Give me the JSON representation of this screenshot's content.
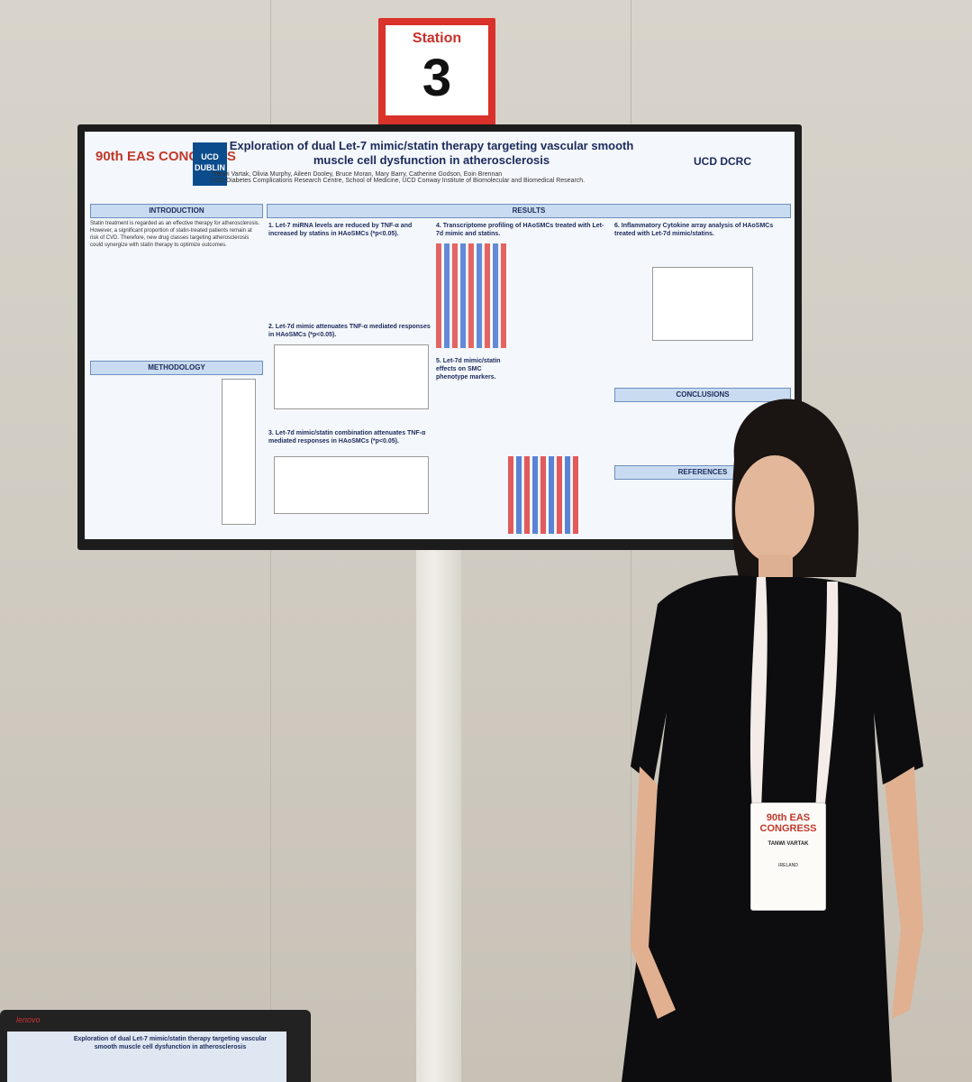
{
  "station": {
    "label": "Station",
    "number": "3"
  },
  "poster": {
    "title": "Exploration of dual Let-7 mimic/statin therapy targeting vascular smooth muscle cell dysfunction in atherosclerosis",
    "authors": "*Tanwi Vartak, Olivia Murphy, Aileen Dooley, Bruce Moran, Mary Barry, Catherine Godson, Eoin Brennan",
    "affiliation": "UCD Diabetes Complications Research Centre, School of Medicine, UCD Conway Institute of Biomolecular and Biomedical Research.",
    "logo_left": "90th EAS CONGRESS",
    "logo_ucd": "UCD DUBLIN",
    "logo_right": "UCD DCRC",
    "sections": {
      "intro": "INTRODUCTION",
      "methods": "METHODOLOGY",
      "results": "RESULTS",
      "conclusions": "CONCLUSIONS",
      "references": "REFERENCES"
    },
    "intro_text": "Statin treatment is regarded as an effective therapy for atherosclerosis. However, a significant proportion of statin-treated patients remain at risk of CVD. Therefore, new drug classes targeting atherosclerosis could synergize with statin therapy to optimize outcomes.",
    "result1": "1. Let-7 miRNA levels are reduced by TNF-α and increased by statins in HAoSMCs (*p<0.05).",
    "result2": "2. Let-7d mimic attenuates TNF-α mediated responses in HAoSMCs (*p<0.05).",
    "result3": "3. Let-7d mimic/statin combination attenuates TNF-α mediated responses in HAoSMCs (*p<0.05).",
    "result4": "4. Transcriptome profiling of HAoSMCs treated with Let-7d mimic and statins.",
    "result5": "5. Let-7d mimic/statin effects on SMC phenotype markers.",
    "result6": "6. Inflammatory Cytokine array analysis of HAoSMCs treated with Let-7d mimic/statins."
  },
  "badge": {
    "logo": "90th EAS CONGRESS",
    "name": "TANWI VARTAK",
    "country": "IRELAND"
  },
  "laptop": {
    "brand": "lenovo",
    "title": "Exploration of dual Let-7 mimic/statin therapy targeting vascular smooth muscle cell dysfunction in atherosclerosis"
  },
  "colors": {
    "poster_blue": "#1a2a5a",
    "station_red": "#d9322b"
  }
}
